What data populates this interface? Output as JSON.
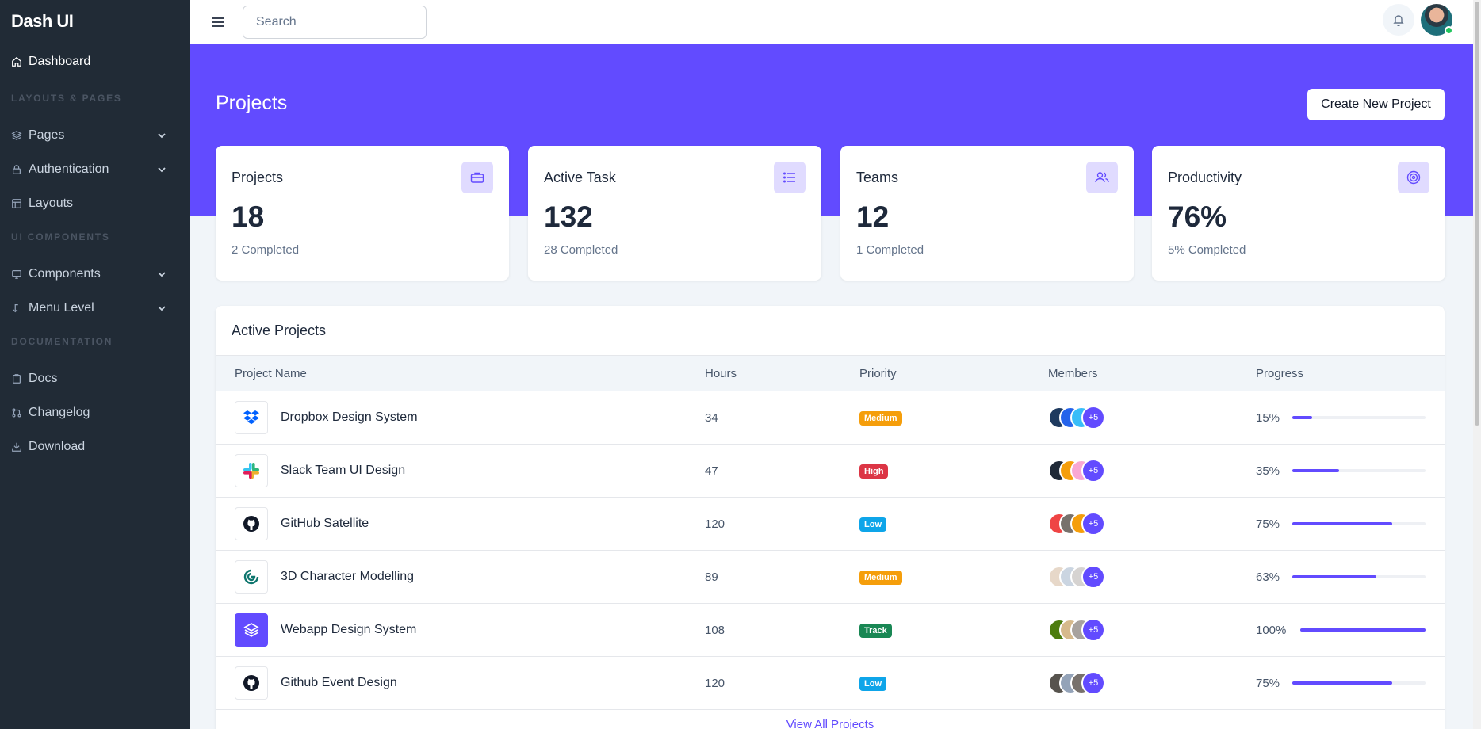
{
  "sidebar": {
    "brand": "Dash UI",
    "dashboard": "Dashboard",
    "heading_layouts": "LAYOUTS & PAGES",
    "pages": "Pages",
    "authentication": "Authentication",
    "layouts": "Layouts",
    "heading_ui": "UI COMPONENTS",
    "components": "Components",
    "menu_level": "Menu Level",
    "heading_docs": "DOCUMENTATION",
    "docs": "Docs",
    "changelog": "Changelog",
    "download": "Download"
  },
  "topbar": {
    "search_placeholder": "Search",
    "search_value": ""
  },
  "header": {
    "title": "Projects",
    "create_button": "Create New Project"
  },
  "stats": [
    {
      "label": "Projects",
      "value": "18",
      "sub": "2 Completed",
      "icon": "briefcase-icon"
    },
    {
      "label": "Active Task",
      "value": "132",
      "sub": "28 Completed",
      "icon": "list-icon"
    },
    {
      "label": "Teams",
      "value": "12",
      "sub": "1 Completed",
      "icon": "users-icon"
    },
    {
      "label": "Productivity",
      "value": "76%",
      "sub": "5% Completed",
      "icon": "target-icon"
    }
  ],
  "table": {
    "title": "Active Projects",
    "columns": [
      "Project Name",
      "Hours",
      "Priority",
      "Members",
      "Progress"
    ],
    "rows": [
      {
        "name": "Dropbox Design System",
        "hours": "34",
        "priority": "Medium",
        "more": "+5",
        "progress": "15%",
        "progress_value": 15,
        "logo": "dropbox-logo"
      },
      {
        "name": "Slack Team UI Design",
        "hours": "47",
        "priority": "High",
        "more": "+5",
        "progress": "35%",
        "progress_value": 35,
        "logo": "slack-logo"
      },
      {
        "name": "GitHub Satellite",
        "hours": "120",
        "priority": "Low",
        "more": "+5",
        "progress": "75%",
        "progress_value": 75,
        "logo": "github-logo"
      },
      {
        "name": "3D Character Modelling",
        "hours": "89",
        "priority": "Medium",
        "more": "+5",
        "progress": "63%",
        "progress_value": 63,
        "logo": "3d-logo"
      },
      {
        "name": "Webapp Design System",
        "hours": "108",
        "priority": "Track",
        "more": "+5",
        "progress": "100%",
        "progress_value": 100,
        "logo": "layers-logo"
      },
      {
        "name": "Github Event Design",
        "hours": "120",
        "priority": "Low",
        "more": "+5",
        "progress": "75%",
        "progress_value": 75,
        "logo": "github-logo"
      }
    ],
    "view_all": "View All Projects"
  },
  "colors": {
    "accent": "#624bff",
    "sidebar_bg": "#212b36",
    "medium": "#f59e0b",
    "high": "#dc3545",
    "low": "#0ea5e9",
    "track": "#198754"
  }
}
